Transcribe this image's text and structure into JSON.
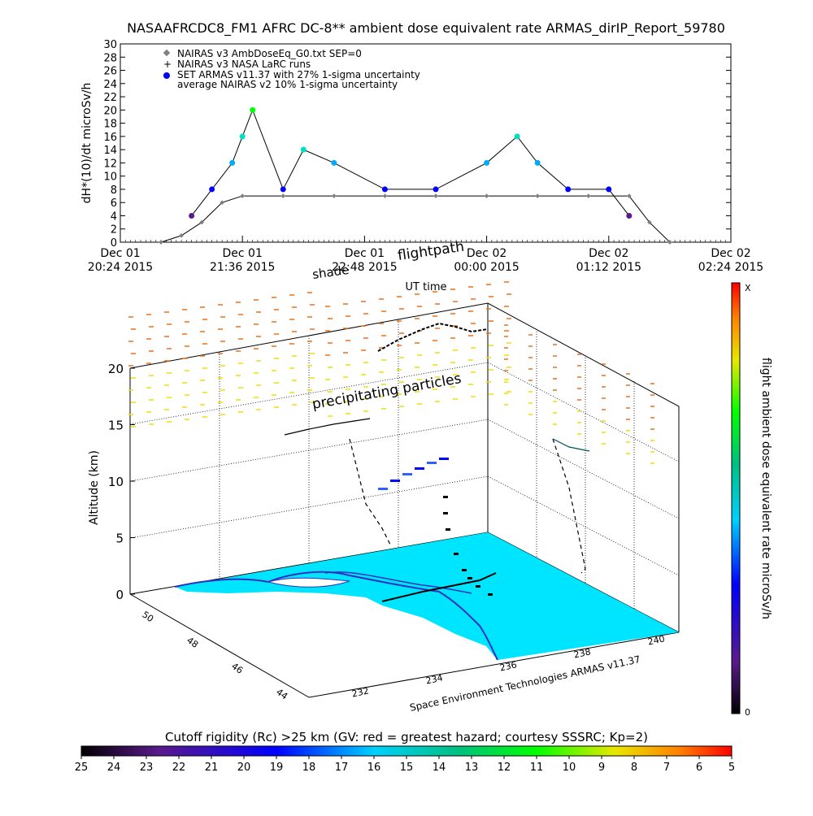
{
  "top_chart": {
    "title": "NASAAFRCDC8_FM1 AFRC DC-8** ambient dose equivalent rate ARMAS_dirIP_Report_59780",
    "ylabel": "dH*(10)/dt microSv/h",
    "xlabel": "UT time",
    "legend": [
      {
        "marker": "diamond",
        "color": "#808080",
        "label": "NAIRAS v3 AmbDoseEq_G0.txt SEP=0"
      },
      {
        "marker": "plus",
        "color": "#000000",
        "label": "NAIRAS v3 NASA LaRC runs"
      },
      {
        "marker": "dot",
        "color": "#0000ff",
        "label": "SET ARMAS v11.37 with 27% 1-sigma uncertainty"
      },
      {
        "marker": "none",
        "color": "#000000",
        "label": "average NAIRAS v2 10% 1-sigma uncertainty"
      }
    ],
    "x_ticks": [
      {
        "line1": "Dec 01",
        "line2": "20:24 2015"
      },
      {
        "line1": "Dec 01",
        "line2": "21:36 2015"
      },
      {
        "line1": "Dec 01",
        "line2": "22:48 2015"
      },
      {
        "line1": "Dec 02",
        "line2": "00:00 2015"
      },
      {
        "line1": "Dec 02",
        "line2": "01:12 2015"
      },
      {
        "line1": "Dec 02",
        "line2": "02:24 2015"
      }
    ],
    "y_ticks": [
      "0",
      "2",
      "4",
      "6",
      "8",
      "10",
      "12",
      "14",
      "16",
      "18",
      "20",
      "22",
      "24",
      "26",
      "28",
      "30"
    ]
  },
  "chart_data": [
    {
      "type": "scatter",
      "title": "NASAAFRCDC8_FM1 AFRC DC-8** ambient dose equivalent rate ARMAS_dirIP_Report_59780",
      "xlabel": "UT time",
      "ylabel": "dH*(10)/dt microSv/h",
      "xlim": [
        "Dec 01 20:24 2015",
        "Dec 02 02:24 2015"
      ],
      "ylim": [
        0,
        30
      ],
      "grid": false,
      "legend_position": "top-left",
      "series": [
        {
          "name": "NAIRAS v3 AmbDoseEq_G0.txt SEP=0",
          "x": [
            "Dec 01 20:48",
            "Dec 01 21:00",
            "Dec 01 21:12",
            "Dec 01 21:24",
            "Dec 01 21:36",
            "Dec 01 22:00",
            "Dec 01 22:30",
            "Dec 01 23:00",
            "Dec 01 23:30",
            "Dec 02 00:00",
            "Dec 02 00:30",
            "Dec 02 01:00",
            "Dec 02 01:24",
            "Dec 02 01:36",
            "Dec 02 01:48"
          ],
          "values": [
            0,
            1,
            3,
            6,
            7,
            7,
            7,
            7,
            7,
            7,
            7,
            7,
            7,
            3,
            0
          ]
        },
        {
          "name": "SET ARMAS v11.37 with 27% 1-sigma uncertainty",
          "x": [
            "Dec 01 21:06",
            "Dec 01 21:18",
            "Dec 01 21:30",
            "Dec 01 21:36",
            "Dec 01 21:42",
            "Dec 01 22:00",
            "Dec 01 22:12",
            "Dec 01 22:30",
            "Dec 01 23:00",
            "Dec 01 23:30",
            "Dec 02 00:00",
            "Dec 02 00:18",
            "Dec 02 00:30",
            "Dec 02 00:48",
            "Dec 02 01:12",
            "Dec 02 01:24"
          ],
          "values": [
            4,
            8,
            12,
            16,
            20,
            8,
            14,
            12,
            8,
            8,
            12,
            16,
            12,
            8,
            8,
            4
          ]
        }
      ]
    },
    {
      "type": "scatter",
      "title": "flightpath",
      "xlabel": "Space Environment Technologies ARMAS v11.37",
      "ylabel": "Altitude (km)",
      "zlim": [
        0,
        20
      ],
      "x_ticks": [
        "232",
        "234",
        "236",
        "238",
        "240"
      ],
      "y_ticks": [
        "44",
        "46",
        "48",
        "50"
      ],
      "z_ticks": [
        "0",
        "5",
        "10",
        "15",
        "20"
      ]
    }
  ],
  "plot3d": {
    "flightpath_label": "flightpath",
    "shade_label": "shade",
    "particles_label": "precipitating particles",
    "zlabel": "Altitude (km)",
    "z_ticks": [
      "0",
      "5",
      "10",
      "15",
      "20"
    ],
    "lat_ticks": [
      "50",
      "48",
      "46",
      "44"
    ],
    "lon_ticks": [
      "232",
      "234",
      "236",
      "238",
      "240"
    ],
    "credit": "Space Environment Technologies ARMAS v11.37"
  },
  "right_colorbar": {
    "label": "flight ambient dose equivalent rate microSv/h",
    "top": "X",
    "bottom": "0"
  },
  "bottom_colorbar": {
    "title": "Cutoff rigidity (Rc) >25 km (GV: red = greatest hazard; courtesy SSSRC; Kp=2)",
    "ticks": [
      "25",
      "24",
      "23",
      "22",
      "21",
      "20",
      "19",
      "18",
      "17",
      "16",
      "15",
      "14",
      "13",
      "12",
      "11",
      "10",
      "9",
      "8",
      "7",
      "6",
      "5"
    ]
  },
  "colors": {
    "armas_blue": "#0000ff",
    "armas_light": "#00aaff",
    "armas_cyan": "#00e0c0",
    "armas_green": "#00ff00",
    "armas_purple": "#5a1a8c",
    "nairas_gray": "#808080",
    "map_fill": "#00e5ff",
    "dash_orange": "#e8701a",
    "dash_yellow": "#f0e000"
  }
}
